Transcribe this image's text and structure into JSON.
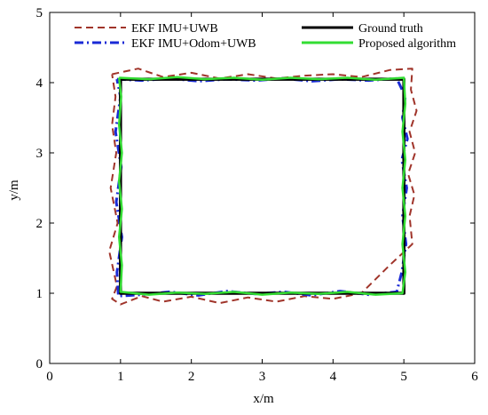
{
  "chart_data": {
    "type": "line",
    "title": "",
    "xlabel": "x/m",
    "ylabel": "y/m",
    "xlim": [
      0,
      6
    ],
    "ylim": [
      0,
      5
    ],
    "xticks": [
      "0",
      "1",
      "2",
      "3",
      "4",
      "5",
      "6"
    ],
    "yticks": [
      "0",
      "1",
      "2",
      "3",
      "4",
      "5"
    ],
    "grid": false,
    "legend_position": "top",
    "series": [
      {
        "name": "EKF IMU+UWB",
        "color": "#a0342a",
        "style": "dashed",
        "x": [
          0.88,
          1.25,
          1.6,
          2.0,
          2.4,
          2.8,
          3.2,
          3.6,
          4.0,
          4.4,
          4.8,
          5.12,
          5.1,
          5.18,
          5.08,
          5.16,
          5.06,
          5.15,
          5.08,
          5.12,
          4.8,
          4.4,
          4.0,
          3.6,
          3.2,
          2.8,
          2.4,
          2.0,
          1.6,
          1.3,
          1.0,
          0.88,
          0.95,
          0.84,
          0.96,
          0.86,
          0.94,
          0.88,
          0.93,
          0.88
        ],
        "y": [
          4.12,
          4.2,
          4.08,
          4.14,
          4.06,
          4.12,
          4.06,
          4.1,
          4.12,
          4.08,
          4.18,
          4.2,
          3.9,
          3.6,
          3.3,
          3.0,
          2.7,
          2.4,
          2.1,
          1.7,
          1.4,
          1.0,
          0.92,
          0.96,
          0.88,
          0.94,
          0.86,
          0.95,
          0.88,
          0.96,
          0.84,
          0.92,
          1.1,
          1.6,
          2.0,
          2.5,
          3.0,
          3.4,
          3.8,
          4.12
        ]
      },
      {
        "name": "EKF IMU+Odom+UWB",
        "color": "#1a2ad6",
        "style": "dashdot",
        "x": [
          0.95,
          1.3,
          1.7,
          2.1,
          2.5,
          2.9,
          3.3,
          3.7,
          4.1,
          4.5,
          4.9,
          5.02,
          4.98,
          5.05,
          4.97,
          5.04,
          4.98,
          5.03,
          4.97,
          4.9,
          4.5,
          4.1,
          3.7,
          3.3,
          2.9,
          2.5,
          2.1,
          1.7,
          1.3,
          0.97,
          0.95,
          1.02,
          0.94,
          1.01,
          0.93,
          1.0,
          0.95
        ],
        "y": [
          4.05,
          4.03,
          4.06,
          4.02,
          4.05,
          4.03,
          4.06,
          4.02,
          4.05,
          4.03,
          4.06,
          3.8,
          3.5,
          3.2,
          2.9,
          2.5,
          2.1,
          1.7,
          1.3,
          1.02,
          0.98,
          1.03,
          0.97,
          1.02,
          0.99,
          1.03,
          0.97,
          1.02,
          0.98,
          0.96,
          1.3,
          1.8,
          2.3,
          2.8,
          3.3,
          3.8,
          4.05
        ]
      },
      {
        "name": "Ground truth",
        "color": "#000000",
        "style": "solid",
        "x": [
          1.0,
          5.0,
          5.0,
          1.0,
          1.0
        ],
        "y": [
          4.05,
          4.05,
          1.0,
          1.0,
          4.05
        ]
      },
      {
        "name": "Proposed algorithm",
        "color": "#33dd33",
        "style": "solid",
        "x": [
          0.98,
          1.4,
          1.8,
          2.2,
          2.6,
          3.0,
          3.4,
          3.8,
          4.2,
          4.6,
          5.0,
          5.02,
          4.98,
          5.02,
          4.98,
          5.02,
          4.98,
          5.02,
          4.98,
          4.6,
          4.2,
          3.8,
          3.4,
          3.0,
          2.6,
          2.2,
          1.8,
          1.4,
          1.0,
          1.02,
          0.98,
          1.02,
          0.98,
          1.02,
          0.98,
          1.01,
          0.98
        ],
        "y": [
          4.07,
          4.05,
          4.08,
          4.05,
          4.07,
          4.04,
          4.07,
          4.05,
          4.07,
          4.04,
          4.07,
          3.7,
          3.3,
          2.9,
          2.5,
          2.1,
          1.7,
          1.3,
          1.0,
          0.98,
          1.02,
          0.99,
          1.01,
          0.98,
          1.02,
          0.99,
          1.01,
          0.98,
          1.02,
          1.4,
          1.8,
          2.2,
          2.6,
          3.0,
          3.4,
          3.8,
          4.07
        ]
      }
    ]
  }
}
